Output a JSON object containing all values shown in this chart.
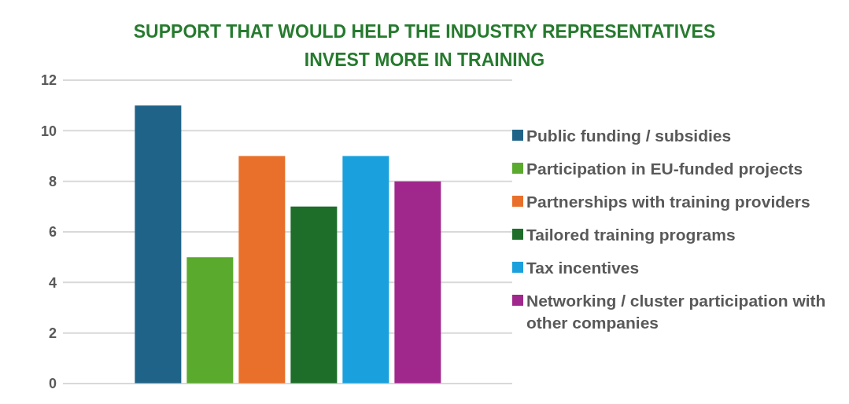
{
  "chart_data": {
    "type": "bar",
    "title": "SUPPORT THAT WOULD HELP THE INDUSTRY REPRESENTATIVES INVEST MORE IN TRAINING",
    "categories": [
      null
    ],
    "series": [
      {
        "name": "Public funding / subsidies",
        "color": "#1f6488",
        "values": [
          11
        ]
      },
      {
        "name": "Participation in EU-funded projects",
        "color": "#5aaa2e",
        "values": [
          5
        ]
      },
      {
        "name": "Partnerships with training providers",
        "color": "#e8702a",
        "values": [
          9
        ]
      },
      {
        "name": "Tailored training programs",
        "color": "#1e6e2a",
        "values": [
          7
        ]
      },
      {
        "name": "Tax incentives",
        "color": "#1aa0dc",
        "values": [
          9
        ]
      },
      {
        "name": "Networking / cluster participation with other companies",
        "color": "#a0288c",
        "values": [
          8
        ]
      }
    ],
    "ylim": [
      0,
      12
    ],
    "yticks": [
      0,
      2,
      4,
      6,
      8,
      10,
      12
    ],
    "grid": "y",
    "legend": "right"
  }
}
